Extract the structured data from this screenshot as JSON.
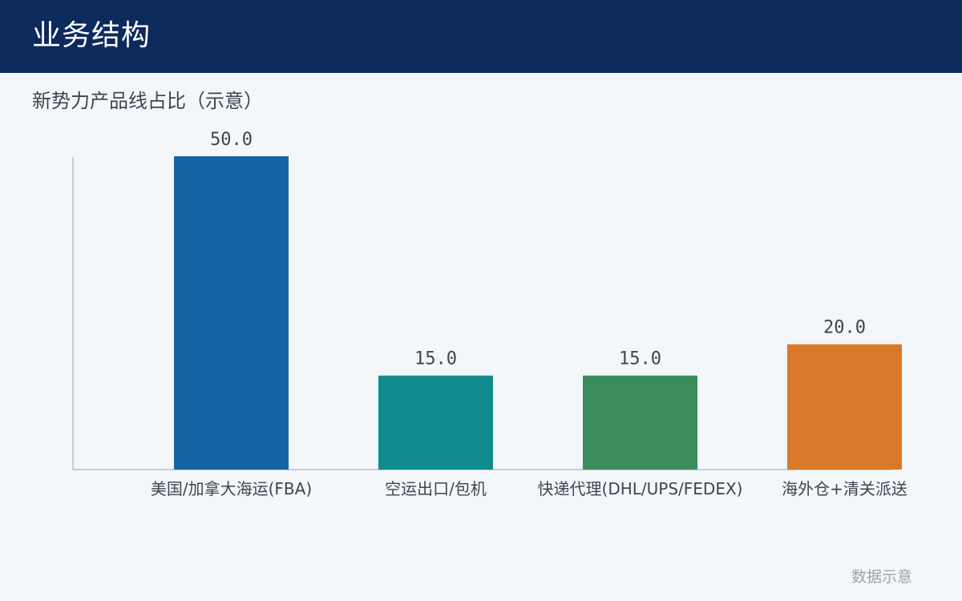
{
  "header": {
    "title": "业务结构"
  },
  "subtitle": "新势力产品线占比（示意）",
  "footnote": "数据示意",
  "chart_data": {
    "type": "bar",
    "title": "新势力产品线占比（示意）",
    "categories": [
      "美国/加拿大海运(FBA)",
      "空运出口/包机",
      "快递代理(DHL/UPS/FEDEX)",
      "海外仓+清关派送"
    ],
    "values": [
      50.0,
      15.0,
      15.0,
      20.0
    ],
    "value_labels": [
      "50.0",
      "15.0",
      "15.0",
      "20.0"
    ],
    "colors": [
      "#1565a6",
      "#128b8e",
      "#3a8d5a",
      "#d8792a"
    ],
    "axis_color": "#b6bdc4",
    "label_color": "#3c4650",
    "xlabel": "",
    "ylabel": "",
    "ylim": [
      0,
      50
    ],
    "grid": false,
    "legend": "none"
  }
}
